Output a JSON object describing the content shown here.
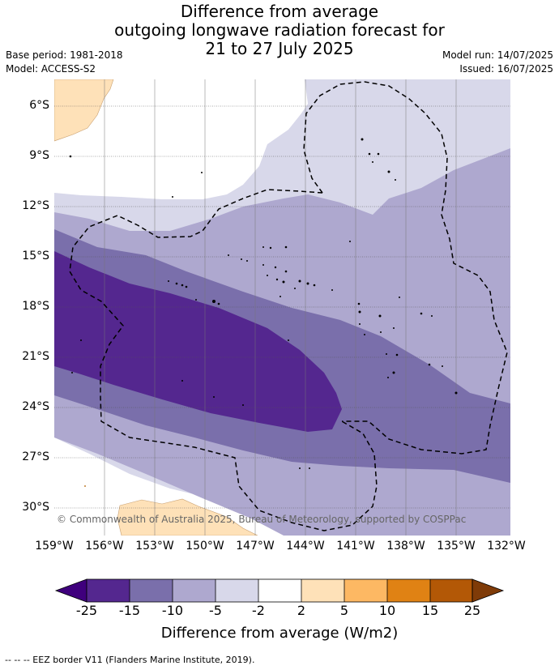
{
  "title": {
    "line1": "Difference from average",
    "line2": "outgoing longwave radiation forecast for",
    "line3": "21 to 27 July 2025"
  },
  "meta": {
    "base_period": "Base period: 1981-2018",
    "model": "Model: ACCESS-S2",
    "model_run": "Model run: 14/07/2025",
    "issued": "Issued: 16/07/2025"
  },
  "map": {
    "lat_labels": [
      "6°S",
      "9°S",
      "12°S",
      "15°S",
      "18°S",
      "21°S",
      "24°S",
      "27°S",
      "30°S"
    ],
    "lon_labels": [
      "159°W",
      "156°W",
      "153°W",
      "150°W",
      "147°W",
      "144°W",
      "141°W",
      "138°W",
      "135°W",
      "132°W"
    ],
    "copyright": "© Commonwealth of Australia 2025, Bureau of Meteorology, supported by COSPPac",
    "colors": {
      "c_-25": "#3f007d",
      "c_-25_-15": "#54278f",
      "c_-15_-10": "#7a6fab",
      "c_-10_-5": "#aea8cf",
      "c_-5_-2": "#d8d8ea",
      "c_-2_2": "#ffffff",
      "c_2_5": "#fee1b8",
      "c_5_10": "#fdb863",
      "c_10_15": "#e08214",
      "c_15_25": "#b35806",
      "c_25": "#7f3b08"
    }
  },
  "colorbar": {
    "ticks": [
      "-25",
      "-15",
      "-10",
      "-5",
      "-2",
      "2",
      "5",
      "10",
      "15",
      "25"
    ],
    "title": "Difference from average (W/m2)"
  },
  "footer": "--  --  -- EEZ border V11 (Flanders Marine Institute, 2019)."
}
